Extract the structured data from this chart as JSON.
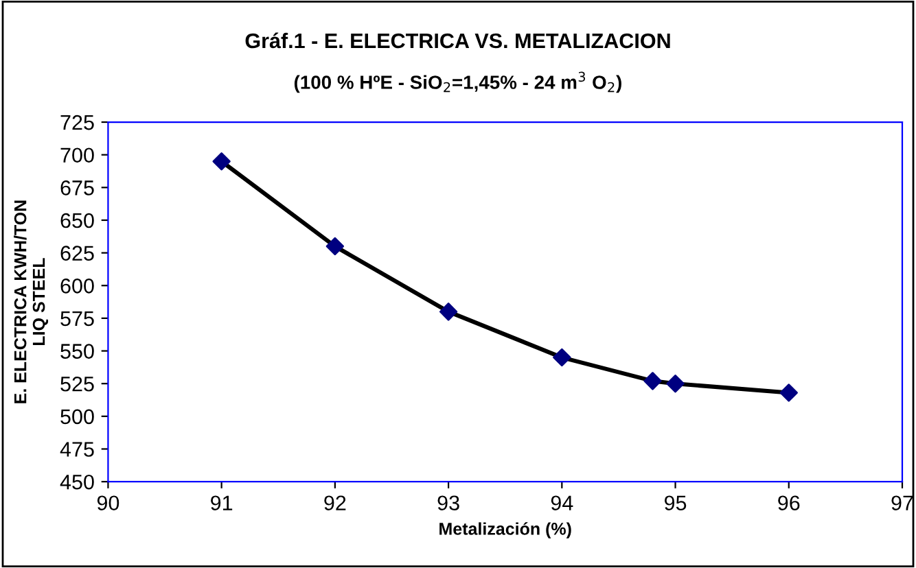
{
  "chart_data": {
    "type": "scatter",
    "title": "Gráf.1 - E. ELECTRICA VS. METALIZACION",
    "subtitle": "(100 % HºE - SiO$_{2}$=1,45% - 24 m$^{3}$ O$_{2}$)",
    "xlabel": "Metalización (%)",
    "ylabel": "E. ELECTRICA KWH/TON\nLIQ STEEL",
    "series": [
      {
        "type": "line",
        "color": "#000000",
        "x": [
          91,
          92,
          93,
          94,
          94.8,
          95,
          96
        ],
        "values": [
          695,
          630,
          580,
          545,
          527,
          525,
          518
        ],
        "marker": "none"
      },
      {
        "color": "#000080",
        "x": [
          91,
          92,
          93,
          94,
          94.8,
          95,
          96
        ],
        "values": [
          695,
          630,
          580,
          545,
          527,
          525,
          518
        ],
        "marker": "diamond"
      }
    ],
    "xlim": [
      90,
      97
    ],
    "xticks": [
      90,
      91,
      92,
      93,
      94,
      95,
      96,
      97
    ],
    "ylim": [
      450,
      725
    ],
    "yticks": [
      450,
      475,
      500,
      525,
      550,
      575,
      600,
      625,
      650,
      675,
      700,
      725
    ],
    "grid": false,
    "legend": false
  }
}
